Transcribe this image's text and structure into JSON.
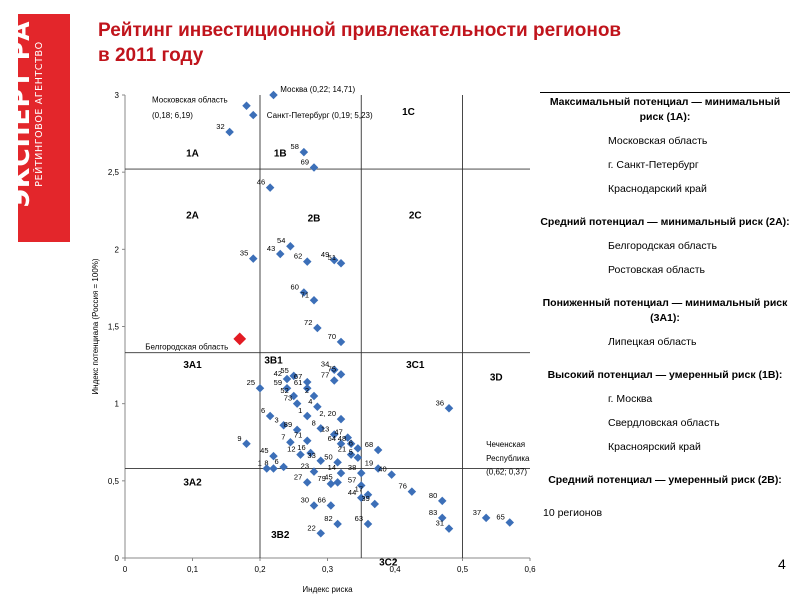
{
  "logo": {
    "main": "ЭКСПЕРТ РА",
    "sub": "РЕЙТИНГОВОЕ АГЕНТСТВО"
  },
  "title": {
    "line1": "Рейтинг инвестиционной привлекательности регионов",
    "line2": "в 2011 году"
  },
  "page_number": "4",
  "colors": {
    "title": "#c0141c",
    "point": "#3c6fb8",
    "highlight": "#e31b23",
    "logo": "#e3262b"
  },
  "panel": {
    "groups": [
      {
        "header": "Максимальный потенциал — минимальный риск (1А):",
        "items": [
          "Московская область",
          "г. Санкт-Петербург",
          "Краснодарский край"
        ]
      },
      {
        "header": "Средний потенциал — минимальный риск (2А):",
        "items": [
          "Белгородская область",
          "Ростовская область"
        ]
      },
      {
        "header": "Пониженный потенциал — минимальный риск (3А1):",
        "items": [
          "Липецкая область"
        ]
      },
      {
        "header": "Высокий потенциал — умеренный риск (1В):",
        "items": [
          "г. Москва",
          "Свердловская область",
          "Красноярский край"
        ]
      },
      {
        "header": "Средний потенциал — умеренный риск (2В):",
        "items": []
      }
    ],
    "footer": "10 регионов"
  },
  "chart_data": {
    "type": "scatter",
    "xlabel": "Индекс риска",
    "ylabel": "Индекс потенциала (Россия = 100%)",
    "xlim": [
      0,
      0.6
    ],
    "ylim": [
      0,
      3
    ],
    "xticks": [
      "0",
      "0,1",
      "0,2",
      "0,3",
      "0,4",
      "0,5",
      "0,6"
    ],
    "yticks": [
      "0",
      "0,5",
      "1",
      "1,5",
      "2",
      "2,5",
      "3"
    ],
    "grid": false,
    "divider_x": [
      0.2,
      0.35,
      0.5
    ],
    "divider_y": [
      0.58,
      1.33,
      2.52
    ],
    "zones": [
      {
        "label": "1C",
        "x": 0.42,
        "y": 2.87
      },
      {
        "label": "1A",
        "x": 0.1,
        "y": 2.6
      },
      {
        "label": "1B",
        "x": 0.23,
        "y": 2.6
      },
      {
        "label": "2A",
        "x": 0.1,
        "y": 2.2
      },
      {
        "label": "2B",
        "x": 0.28,
        "y": 2.18
      },
      {
        "label": "2C",
        "x": 0.43,
        "y": 2.2
      },
      {
        "label": "3A1",
        "x": 0.1,
        "y": 1.23
      },
      {
        "label": "3B1",
        "x": 0.22,
        "y": 1.26
      },
      {
        "label": "3C1",
        "x": 0.43,
        "y": 1.23
      },
      {
        "label": "3D",
        "x": 0.55,
        "y": 1.15
      },
      {
        "label": "3A2",
        "x": 0.1,
        "y": 0.47
      },
      {
        "label": "3B2",
        "x": 0.23,
        "y": 0.13
      },
      {
        "label": "3C2",
        "x": 0.39,
        "y": -0.05
      }
    ],
    "annotations": [
      {
        "text": "Москва (0,22; 14,71)",
        "x": 0.23,
        "y": 3.02,
        "anchor": "start"
      },
      {
        "text": "Московская область",
        "x": 0.04,
        "y": 2.95,
        "anchor": "start"
      },
      {
        "text": "(0,18; 6,19)",
        "x": 0.04,
        "y": 2.85,
        "anchor": "start"
      },
      {
        "text": "Санкт-Петербург (0,19; 5,23)",
        "x": 0.21,
        "y": 2.85,
        "anchor": "start"
      },
      {
        "text": "Белгородская область",
        "x": 0.03,
        "y": 1.35,
        "anchor": "start"
      },
      {
        "text": "Чеченская",
        "x": 0.535,
        "y": 0.72,
        "anchor": "start"
      },
      {
        "text": "Республика",
        "x": 0.535,
        "y": 0.63,
        "anchor": "start"
      },
      {
        "text": "(0,62; 0,37)",
        "x": 0.535,
        "y": 0.54,
        "anchor": "start"
      }
    ],
    "highlight": {
      "x": 0.17,
      "y": 1.42
    },
    "points": [
      {
        "label": "",
        "x": 0.22,
        "y": 3.0
      },
      {
        "label": "",
        "x": 0.18,
        "y": 2.93
      },
      {
        "label": "",
        "x": 0.19,
        "y": 2.87
      },
      {
        "label": "32",
        "x": 0.155,
        "y": 2.76
      },
      {
        "label": "58",
        "x": 0.265,
        "y": 2.63
      },
      {
        "label": "69",
        "x": 0.28,
        "y": 2.53
      },
      {
        "label": "46",
        "x": 0.215,
        "y": 2.4
      },
      {
        "label": "54",
        "x": 0.245,
        "y": 2.02
      },
      {
        "label": "43",
        "x": 0.23,
        "y": 1.97
      },
      {
        "label": "49",
        "x": 0.31,
        "y": 1.93
      },
      {
        "label": "51",
        "x": 0.32,
        "y": 1.91
      },
      {
        "label": "62",
        "x": 0.27,
        "y": 1.92
      },
      {
        "label": "35",
        "x": 0.19,
        "y": 1.94
      },
      {
        "label": "60",
        "x": 0.265,
        "y": 1.72
      },
      {
        "label": "71",
        "x": 0.28,
        "y": 1.67
      },
      {
        "label": "72",
        "x": 0.285,
        "y": 1.49
      },
      {
        "label": "70",
        "x": 0.32,
        "y": 1.4
      },
      {
        "label": "34",
        "x": 0.31,
        "y": 1.22
      },
      {
        "label": "75",
        "x": 0.32,
        "y": 1.19
      },
      {
        "label": "55",
        "x": 0.25,
        "y": 1.18
      },
      {
        "label": "42",
        "x": 0.24,
        "y": 1.16
      },
      {
        "label": "67",
        "x": 0.27,
        "y": 1.14
      },
      {
        "label": "77",
        "x": 0.31,
        "y": 1.15
      },
      {
        "label": "59",
        "x": 0.24,
        "y": 1.1
      },
      {
        "label": "25",
        "x": 0.2,
        "y": 1.1
      },
      {
        "label": "61",
        "x": 0.27,
        "y": 1.1
      },
      {
        "label": "52",
        "x": 0.25,
        "y": 1.05
      },
      {
        "label": "2",
        "x": 0.28,
        "y": 1.05
      },
      {
        "label": "73",
        "x": 0.255,
        "y": 1.0
      },
      {
        "label": "4",
        "x": 0.285,
        "y": 0.98
      },
      {
        "label": "36",
        "x": 0.48,
        "y": 0.97
      },
      {
        "label": "6",
        "x": 0.215,
        "y": 0.92
      },
      {
        "label": "1",
        "x": 0.27,
        "y": 0.92
      },
      {
        "label": "2, 20",
        "x": 0.32,
        "y": 0.9
      },
      {
        "label": "3",
        "x": 0.235,
        "y": 0.86
      },
      {
        "label": "8",
        "x": 0.29,
        "y": 0.84
      },
      {
        "label": "89",
        "x": 0.255,
        "y": 0.83
      },
      {
        "label": "13",
        "x": 0.31,
        "y": 0.8
      },
      {
        "label": "47",
        "x": 0.33,
        "y": 0.78
      },
      {
        "label": "9",
        "x": 0.18,
        "y": 0.74
      },
      {
        "label": "7",
        "x": 0.245,
        "y": 0.75
      },
      {
        "label": "71",
        "x": 0.27,
        "y": 0.76
      },
      {
        "label": "64",
        "x": 0.32,
        "y": 0.74
      },
      {
        "label": "48",
        "x": 0.335,
        "y": 0.74
      },
      {
        "label": "6",
        "x": 0.345,
        "y": 0.71
      },
      {
        "label": "68",
        "x": 0.375,
        "y": 0.7
      },
      {
        "label": "45",
        "x": 0.22,
        "y": 0.66
      },
      {
        "label": "12",
        "x": 0.26,
        "y": 0.67
      },
      {
        "label": "16",
        "x": 0.275,
        "y": 0.68
      },
      {
        "label": "21",
        "x": 0.335,
        "y": 0.67
      },
      {
        "label": "5",
        "x": 0.345,
        "y": 0.65
      },
      {
        "label": "33",
        "x": 0.29,
        "y": 0.63
      },
      {
        "label": "50",
        "x": 0.315,
        "y": 0.62
      },
      {
        "label": "19",
        "x": 0.375,
        "y": 0.58
      },
      {
        "label": "6",
        "x": 0.235,
        "y": 0.59
      },
      {
        "label": "8",
        "x": 0.22,
        "y": 0.58
      },
      {
        "label": "1",
        "x": 0.21,
        "y": 0.58
      },
      {
        "label": "23",
        "x": 0.28,
        "y": 0.56
      },
      {
        "label": "14",
        "x": 0.32,
        "y": 0.55
      },
      {
        "label": "38",
        "x": 0.35,
        "y": 0.55
      },
      {
        "label": "40",
        "x": 0.395,
        "y": 0.54
      },
      {
        "label": "27",
        "x": 0.27,
        "y": 0.49
      },
      {
        "label": "79",
        "x": 0.305,
        "y": 0.48
      },
      {
        "label": "45",
        "x": 0.315,
        "y": 0.49
      },
      {
        "label": "57",
        "x": 0.35,
        "y": 0.47
      },
      {
        "label": "17",
        "x": 0.36,
        "y": 0.41
      },
      {
        "label": "76",
        "x": 0.425,
        "y": 0.43
      },
      {
        "label": "44",
        "x": 0.35,
        "y": 0.39
      },
      {
        "label": "80",
        "x": 0.47,
        "y": 0.37
      },
      {
        "label": "39",
        "x": 0.37,
        "y": 0.35
      },
      {
        "label": "30",
        "x": 0.28,
        "y": 0.34
      },
      {
        "label": "66",
        "x": 0.305,
        "y": 0.34
      },
      {
        "label": "37",
        "x": 0.535,
        "y": 0.26
      },
      {
        "label": "65",
        "x": 0.57,
        "y": 0.23
      },
      {
        "label": "83",
        "x": 0.47,
        "y": 0.26
      },
      {
        "label": "82",
        "x": 0.315,
        "y": 0.22
      },
      {
        "label": "63",
        "x": 0.36,
        "y": 0.22
      },
      {
        "label": "31",
        "x": 0.48,
        "y": 0.19
      },
      {
        "label": "22",
        "x": 0.29,
        "y": 0.16
      }
    ]
  }
}
